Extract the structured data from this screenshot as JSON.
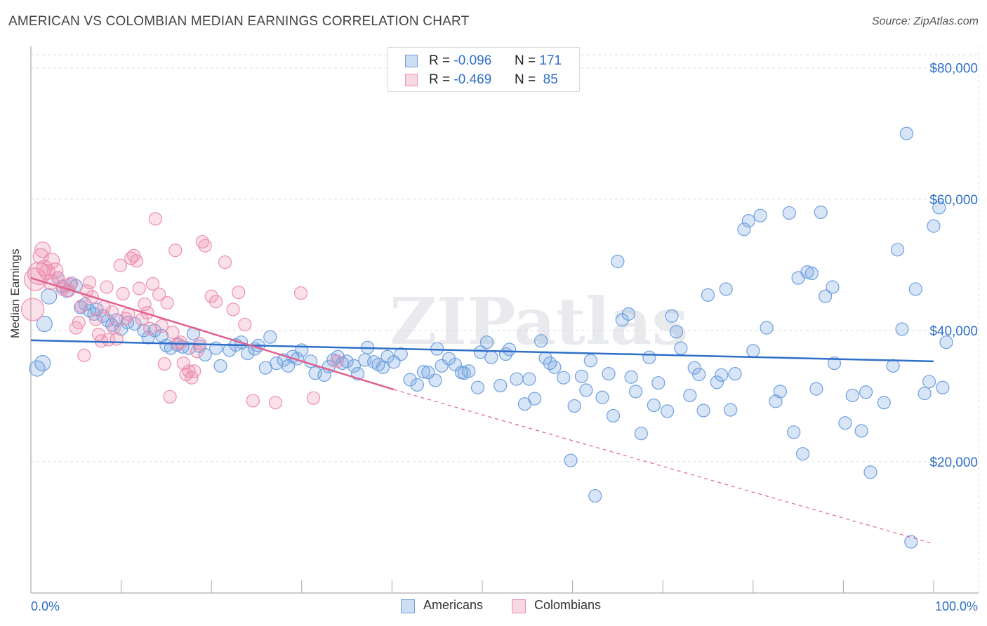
{
  "header": {
    "title": "AMERICAN VS COLOMBIAN MEDIAN EARNINGS CORRELATION CHART",
    "source": "Source: ZipAtlas.com"
  },
  "watermark": "ZIPatlas",
  "legend_top": [
    {
      "r_label": "R =",
      "r_value": "-0.096",
      "n_label": "N =",
      "n_value": "171",
      "color": "#6fa0e0"
    },
    {
      "r_label": "R =",
      "r_value": "-0.469",
      "n_label": "N =",
      "n_value": "85",
      "color": "#ee8eaf"
    }
  ],
  "legend_bottom": [
    {
      "label": "Americans",
      "color": "#6fa0e0"
    },
    {
      "label": "Colombians",
      "color": "#ee8eaf"
    }
  ],
  "chart_data": {
    "type": "scatter",
    "title": "AMERICAN VS COLOMBIAN MEDIAN EARNINGS CORRELATION CHART",
    "xlabel": "",
    "ylabel": "Median Earnings",
    "xlim": [
      0,
      100
    ],
    "ylim": [
      0,
      82000
    ],
    "x_tick_labels": [
      "0.0%",
      "100.0%"
    ],
    "y_tick_labels": [
      "$20,000",
      "$40,000",
      "$60,000",
      "$80,000"
    ],
    "y_ticks": [
      20000,
      40000,
      60000,
      80000
    ],
    "grid": true,
    "legend_placement": "top-center and bottom",
    "series": [
      {
        "name": "Americans",
        "color": "#6fa0e0",
        "line_color": "#2f6fc9",
        "trend": {
          "x": [
            0,
            100
          ],
          "y": [
            38500,
            35300
          ],
          "dashed_to": null
        },
        "points": [
          [
            0.7,
            34200
          ],
          [
            1.3,
            35000
          ],
          [
            1.5,
            41000
          ],
          [
            2,
            45200
          ],
          [
            3,
            48000
          ],
          [
            3.5,
            46700
          ],
          [
            4,
            46000
          ],
          [
            4.4,
            47000
          ],
          [
            5,
            46800
          ],
          [
            5.5,
            43500
          ],
          [
            6,
            44000
          ],
          [
            6.5,
            43000
          ],
          [
            7,
            42500
          ],
          [
            7.3,
            43200
          ],
          [
            8,
            42200
          ],
          [
            8.5,
            41500
          ],
          [
            9,
            40800
          ],
          [
            9.5,
            41600
          ],
          [
            10,
            40200
          ],
          [
            10.7,
            41200
          ],
          [
            11.5,
            41000
          ],
          [
            12.5,
            40000
          ],
          [
            13,
            38900
          ],
          [
            13.7,
            40000
          ],
          [
            14.5,
            39200
          ],
          [
            15,
            37700
          ],
          [
            15.5,
            37300
          ],
          [
            16.2,
            37800
          ],
          [
            16.8,
            37500
          ],
          [
            17.5,
            37300
          ],
          [
            18,
            39500
          ],
          [
            18.7,
            37600
          ],
          [
            19.3,
            36300
          ],
          [
            20.5,
            37300
          ],
          [
            21,
            34600
          ],
          [
            22,
            37000
          ],
          [
            22.7,
            37800
          ],
          [
            23.3,
            38200
          ],
          [
            24,
            36500
          ],
          [
            24.8,
            37200
          ],
          [
            25.2,
            37700
          ],
          [
            26,
            34300
          ],
          [
            26.5,
            39000
          ],
          [
            27.2,
            35000
          ],
          [
            28,
            35500
          ],
          [
            28.5,
            34600
          ],
          [
            29,
            36000
          ],
          [
            29.5,
            35700
          ],
          [
            30,
            37000
          ],
          [
            31,
            35300
          ],
          [
            31.5,
            33500
          ],
          [
            32.5,
            33200
          ],
          [
            33,
            34500
          ],
          [
            33.5,
            35500
          ],
          [
            34,
            36000
          ],
          [
            34.5,
            35000
          ],
          [
            35,
            35300
          ],
          [
            35.8,
            34600
          ],
          [
            36.2,
            33400
          ],
          [
            37,
            35500
          ],
          [
            37.3,
            37400
          ],
          [
            38,
            35200
          ],
          [
            38.5,
            34800
          ],
          [
            39,
            34400
          ],
          [
            39.5,
            36000
          ],
          [
            40.2,
            35200
          ],
          [
            41,
            36400
          ],
          [
            42,
            32500
          ],
          [
            42.8,
            31700
          ],
          [
            43.5,
            33700
          ],
          [
            44,
            33600
          ],
          [
            44.8,
            32400
          ],
          [
            45,
            37200
          ],
          [
            45.5,
            34600
          ],
          [
            46.3,
            35700
          ],
          [
            47,
            34800
          ],
          [
            47.7,
            33600
          ],
          [
            48,
            33500
          ],
          [
            48.5,
            33800
          ],
          [
            49.5,
            31300
          ],
          [
            49.8,
            36700
          ],
          [
            50.5,
            38200
          ],
          [
            51,
            35900
          ],
          [
            52,
            31600
          ],
          [
            52.6,
            36400
          ],
          [
            53,
            37100
          ],
          [
            53.8,
            32600
          ],
          [
            54.7,
            28800
          ],
          [
            55.2,
            32600
          ],
          [
            55.8,
            29600
          ],
          [
            56.5,
            38400
          ],
          [
            57,
            35800
          ],
          [
            57.5,
            35000
          ],
          [
            58,
            34400
          ],
          [
            59,
            32800
          ],
          [
            59.8,
            20200
          ],
          [
            60.2,
            28500
          ],
          [
            61,
            33000
          ],
          [
            61.5,
            30900
          ],
          [
            62,
            35400
          ],
          [
            62.5,
            14800
          ],
          [
            63.3,
            29800
          ],
          [
            64,
            33400
          ],
          [
            64.5,
            27000
          ],
          [
            65,
            50500
          ],
          [
            65.5,
            41600
          ],
          [
            66.2,
            42500
          ],
          [
            66.5,
            32900
          ],
          [
            67,
            30700
          ],
          [
            67.6,
            24300
          ],
          [
            68.5,
            35900
          ],
          [
            69,
            28600
          ],
          [
            69.5,
            32000
          ],
          [
            70.5,
            27700
          ],
          [
            71,
            42200
          ],
          [
            71.5,
            39800
          ],
          [
            72,
            37300
          ],
          [
            73,
            30100
          ],
          [
            73.5,
            34300
          ],
          [
            74,
            33300
          ],
          [
            74.5,
            27800
          ],
          [
            75,
            45400
          ],
          [
            76,
            32100
          ],
          [
            76.5,
            33200
          ],
          [
            77,
            46300
          ],
          [
            77.5,
            27900
          ],
          [
            78,
            33400
          ],
          [
            79,
            55400
          ],
          [
            79.5,
            56700
          ],
          [
            80,
            36900
          ],
          [
            80.8,
            57500
          ],
          [
            81.5,
            40400
          ],
          [
            82.5,
            29200
          ],
          [
            83,
            30700
          ],
          [
            84,
            57900
          ],
          [
            84.5,
            24500
          ],
          [
            85,
            48000
          ],
          [
            85.5,
            21200
          ],
          [
            86,
            48900
          ],
          [
            86.5,
            48700
          ],
          [
            87,
            31100
          ],
          [
            87.5,
            58000
          ],
          [
            88,
            45200
          ],
          [
            88.8,
            46600
          ],
          [
            89,
            35000
          ],
          [
            90.2,
            25900
          ],
          [
            91,
            30100
          ],
          [
            92,
            24700
          ],
          [
            92.5,
            30600
          ],
          [
            93,
            18400
          ],
          [
            94.5,
            29000
          ],
          [
            95.5,
            34600
          ],
          [
            96,
            52300
          ],
          [
            96.5,
            40200
          ],
          [
            97,
            70000
          ],
          [
            97.5,
            7800
          ],
          [
            98,
            46300
          ],
          [
            99,
            30400
          ],
          [
            99.5,
            32200
          ],
          [
            100,
            55900
          ],
          [
            100.6,
            58700
          ],
          [
            101,
            31300
          ],
          [
            101.4,
            38200
          ]
        ]
      },
      {
        "name": "Colombians",
        "color": "#ee8eaf",
        "line_color": "#e0608f",
        "trend": {
          "x": [
            0,
            40.2
          ],
          "y": [
            48000,
            31000
          ],
          "dashed_to": [
            100,
            7500
          ]
        },
        "points": [
          [
            0.2,
            43200
          ],
          [
            0.5,
            47800
          ],
          [
            0.9,
            48700
          ],
          [
            1.1,
            51300
          ],
          [
            1.3,
            52300
          ],
          [
            1.5,
            49500
          ],
          [
            1.8,
            48900
          ],
          [
            2.2,
            47400
          ],
          [
            2.3,
            50600
          ],
          [
            2.7,
            49100
          ],
          [
            3,
            48000
          ],
          [
            3.5,
            46300
          ],
          [
            3.8,
            46900
          ],
          [
            4.2,
            46100
          ],
          [
            4.5,
            47200
          ],
          [
            5,
            40400
          ],
          [
            5.3,
            41200
          ],
          [
            5.6,
            43700
          ],
          [
            5.9,
            36200
          ],
          [
            6.2,
            46000
          ],
          [
            6.5,
            47300
          ],
          [
            6.8,
            45100
          ],
          [
            7.2,
            41700
          ],
          [
            7.5,
            39400
          ],
          [
            7.8,
            38400
          ],
          [
            8.1,
            43600
          ],
          [
            8.4,
            46600
          ],
          [
            8.6,
            38600
          ],
          [
            9,
            42800
          ],
          [
            9.2,
            40400
          ],
          [
            9.5,
            38700
          ],
          [
            9.9,
            49900
          ],
          [
            10.2,
            45600
          ],
          [
            10.5,
            41800
          ],
          [
            10.8,
            42500
          ],
          [
            11.1,
            51000
          ],
          [
            11.4,
            51400
          ],
          [
            11.7,
            50600
          ],
          [
            12,
            46400
          ],
          [
            12.3,
            41700
          ],
          [
            12.6,
            44000
          ],
          [
            12.9,
            42700
          ],
          [
            13.2,
            40300
          ],
          [
            13.5,
            47100
          ],
          [
            13.8,
            57000
          ],
          [
            14.2,
            45500
          ],
          [
            14.5,
            40700
          ],
          [
            14.8,
            34900
          ],
          [
            15.1,
            44200
          ],
          [
            15.4,
            29900
          ],
          [
            15.7,
            39700
          ],
          [
            16,
            52200
          ],
          [
            16.3,
            38000
          ],
          [
            16.6,
            38200
          ],
          [
            16.9,
            35000
          ],
          [
            17.2,
            33300
          ],
          [
            17.5,
            33800
          ],
          [
            17.8,
            32800
          ],
          [
            18.1,
            33800
          ],
          [
            18.4,
            36800
          ],
          [
            18.7,
            38000
          ],
          [
            19,
            53500
          ],
          [
            19.3,
            52900
          ],
          [
            20,
            45200
          ],
          [
            20.5,
            44400
          ],
          [
            21.5,
            50400
          ],
          [
            22.4,
            43200
          ],
          [
            23,
            45800
          ],
          [
            23.7,
            40900
          ],
          [
            24.6,
            29300
          ],
          [
            27.1,
            29000
          ],
          [
            29.9,
            45700
          ],
          [
            31.3,
            29700
          ],
          [
            33.9,
            35300
          ]
        ]
      }
    ]
  }
}
